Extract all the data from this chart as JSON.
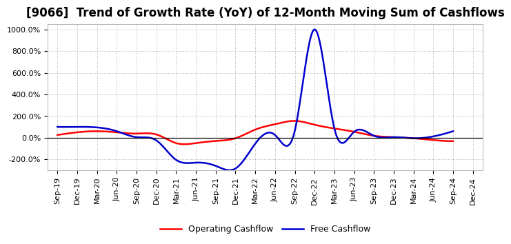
{
  "title": "[9066]  Trend of Growth Rate (YoY) of 12-Month Moving Sum of Cashflows",
  "x_labels": [
    "Sep-19",
    "Dec-19",
    "Mar-20",
    "Jun-20",
    "Sep-20",
    "Dec-20",
    "Mar-21",
    "Jun-21",
    "Sep-21",
    "Dec-21",
    "Mar-22",
    "Jun-22",
    "Sep-22",
    "Dec-22",
    "Mar-23",
    "Jun-23",
    "Sep-23",
    "Dec-23",
    "Mar-24",
    "Jun-24",
    "Sep-24",
    "Dec-24"
  ],
  "operating_cashflow": [
    25,
    50,
    60,
    50,
    38,
    30,
    -50,
    -50,
    -30,
    -5,
    75,
    125,
    155,
    120,
    85,
    55,
    18,
    5,
    -5,
    -22,
    -32,
    null
  ],
  "free_cashflow": [
    100,
    100,
    95,
    60,
    5,
    -25,
    -205,
    -230,
    -260,
    -285,
    -55,
    25,
    65,
    1000,
    85,
    55,
    18,
    5,
    -5,
    12,
    60,
    null
  ],
  "ylim": [
    -300,
    1050
  ],
  "yticks": [
    -200,
    0,
    200,
    400,
    600,
    800,
    1000
  ],
  "operating_color": "#ff0000",
  "free_color": "#0000cd",
  "background_color": "#ffffff",
  "grid_color": "#999999",
  "line_width": 1.8,
  "title_fontsize": 12,
  "tick_fontsize": 8,
  "legend_labels": [
    "Operating Cashflow",
    "Free Cashflow"
  ]
}
